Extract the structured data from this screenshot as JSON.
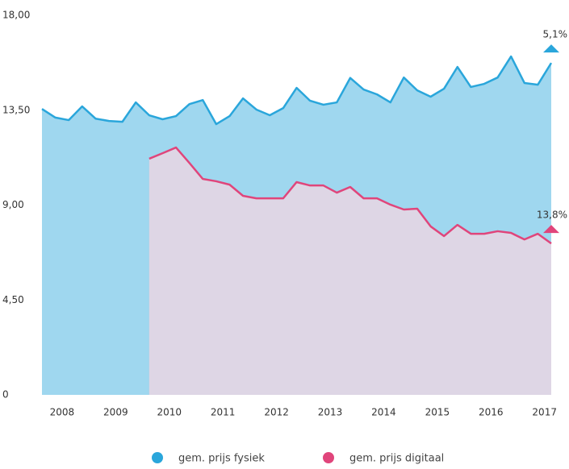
{
  "chart_data": {
    "type": "area",
    "x": [
      2007.625,
      2007.875,
      2008.125,
      2008.375,
      2008.625,
      2008.875,
      2009.125,
      2009.375,
      2009.625,
      2009.875,
      2010.125,
      2010.375,
      2010.625,
      2010.875,
      2011.125,
      2011.375,
      2011.625,
      2011.875,
      2012.125,
      2012.375,
      2012.625,
      2012.875,
      2013.125,
      2013.375,
      2013.625,
      2013.875,
      2014.125,
      2014.375,
      2014.625,
      2014.875,
      2015.125,
      2015.375,
      2015.625,
      2015.875,
      2016.125,
      2016.375,
      2016.625,
      2016.875,
      2017.125
    ],
    "series": [
      {
        "name": "gem. prijs fysiek",
        "color": "#2aa6db",
        "end_label": "5,1%",
        "values": [
          13.56,
          13.15,
          13.03,
          13.68,
          13.1,
          12.99,
          12.95,
          13.87,
          13.26,
          13.07,
          13.22,
          13.79,
          13.98,
          12.84,
          13.22,
          14.06,
          13.53,
          13.26,
          13.6,
          14.56,
          13.95,
          13.76,
          13.87,
          15.03,
          14.48,
          14.25,
          13.87,
          15.05,
          14.44,
          14.14,
          14.52,
          15.55,
          14.6,
          14.75,
          15.05,
          16.05,
          14.79,
          14.71,
          15.74
        ]
      },
      {
        "name": "gem. prijs digitaal",
        "color": "#e0457b",
        "end_label": "13,8%",
        "values": [
          null,
          null,
          null,
          null,
          null,
          null,
          null,
          null,
          11.2,
          11.46,
          11.73,
          11.0,
          10.24,
          10.13,
          9.97,
          9.44,
          9.32,
          9.32,
          9.32,
          10.09,
          9.93,
          9.93,
          9.59,
          9.86,
          9.32,
          9.32,
          9.02,
          8.79,
          8.83,
          7.99,
          7.53,
          8.06,
          7.64,
          7.64,
          7.76,
          7.68,
          7.37,
          7.64,
          7.18
        ]
      }
    ],
    "xlim": [
      2007.625,
      2017.125
    ],
    "xticks": [
      2008,
      2009,
      2010,
      2011,
      2012,
      2013,
      2014,
      2015,
      2016,
      2017
    ],
    "ylim": [
      0,
      18
    ],
    "yticks": [
      0,
      {
        "value": 4.5,
        "label": "4,50"
      },
      {
        "value": 9,
        "label": "9,00"
      },
      {
        "value": 13.5,
        "label": "13,50"
      },
      {
        "value": 18,
        "label": "18,00"
      }
    ],
    "legend": "bottom"
  }
}
